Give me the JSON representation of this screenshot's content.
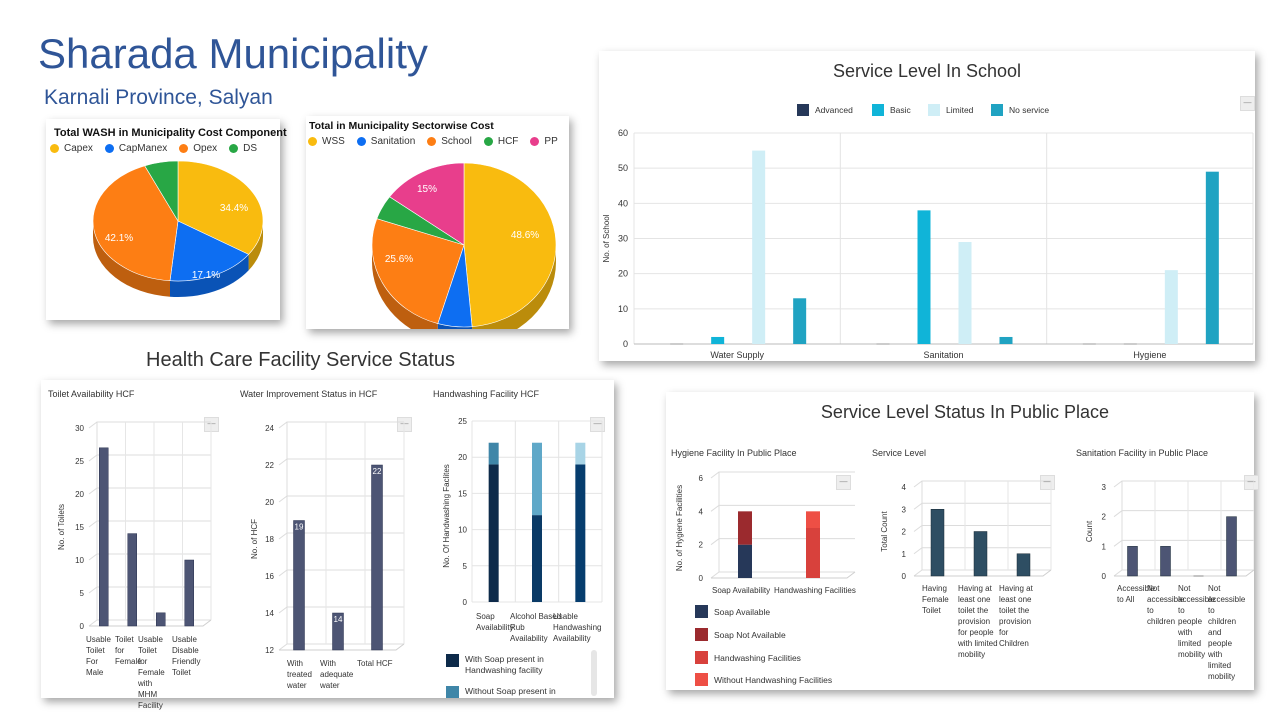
{
  "header": {
    "title": "Sharada Municipality",
    "subtitle": "Karnali Province, Salyan"
  },
  "section_titles": {
    "hcf": "Health Care Facility Service Status",
    "public": "Service Level Status In Public Place"
  },
  "menu_icon": "—",
  "colors": {
    "title": "#2f5597",
    "navy": "#4d5574",
    "hcf_bar": "#50597a"
  },
  "chart_data": [
    {
      "id": "wash_cost",
      "type": "pie",
      "title": "Total WASH in Municipality Cost Component",
      "legend": [
        "Capex",
        "CapManex",
        "Opex",
        "DS"
      ],
      "values": [
        34.4,
        17.1,
        42.1,
        6.4
      ],
      "labels": [
        "34.4%",
        "17.1%",
        "42.1%",
        ""
      ],
      "colors": [
        "#f9bb0f",
        "#0d6ef2",
        "#fd7e14",
        "#28a745"
      ]
    },
    {
      "id": "sectorwise_cost",
      "type": "pie",
      "title": "Total in Municipality Sectorwise Cost",
      "legend": [
        "WSS",
        "Sanitation",
        "School",
        "HCF",
        "PP"
      ],
      "values": [
        48.6,
        6.0,
        25.6,
        4.8,
        15.0
      ],
      "labels": [
        "48.6%",
        "",
        "25.6%",
        "",
        "15%"
      ],
      "colors": [
        "#f9bb0f",
        "#0d6ef2",
        "#fd7e14",
        "#28a745",
        "#e83e8c"
      ]
    },
    {
      "id": "school",
      "type": "bar",
      "title": "Service Level In School",
      "categories": [
        "Water Supply",
        "Sanitation",
        "Hygiene"
      ],
      "series": [
        {
          "name": "Advanced",
          "color": "#263859",
          "values": [
            0,
            0,
            0
          ]
        },
        {
          "name": "Basic",
          "color": "#10b4d8",
          "values": [
            2,
            38,
            0
          ]
        },
        {
          "name": "Limited",
          "color": "#cfeef6",
          "values": [
            55,
            29,
            21
          ]
        },
        {
          "name": "No service",
          "color": "#20a3c2",
          "values": [
            13,
            2,
            49
          ]
        }
      ],
      "ylabel": "No. of School",
      "ylim": [
        0,
        60
      ],
      "yticks": [
        "0",
        "10",
        "20",
        "30",
        "40",
        "50",
        "60"
      ],
      "legend_position": "top"
    },
    {
      "id": "toilet_hcf",
      "type": "bar",
      "title": "Toilet Availability HCF",
      "categories": [
        "Usable Toilet For Male",
        "Toilet for Female",
        "Usable Toilet for Female with MHM Facility",
        "Usable Disable Friendly Toilet"
      ],
      "values": [
        27,
        14,
        2,
        10
      ],
      "ylabel": "No. of Toilets",
      "ylim": [
        0,
        30
      ],
      "yticks": [
        "0",
        "5",
        "10",
        "15",
        "20",
        "25",
        "30"
      ]
    },
    {
      "id": "water_hcf",
      "type": "bar",
      "title": "Water Improvement Status in HCF",
      "categories": [
        "With treated water",
        "With adequate water",
        "Total HCF"
      ],
      "values": [
        19,
        14,
        22
      ],
      "data_labels": [
        "19",
        "14",
        "22"
      ],
      "ylabel": "No. of HCF",
      "ylim": [
        12,
        24
      ],
      "yticks": [
        "12",
        "14",
        "16",
        "18",
        "20",
        "22",
        "24"
      ]
    },
    {
      "id": "handwash_hcf",
      "type": "bar",
      "title": "Handwashing Facility HCF",
      "categories": [
        "Soap Availability",
        "Alcohol Based Rub Availability",
        "Usable Handwashing Availability"
      ],
      "series": [
        {
          "name": "With Soap present in Handwashing facility",
          "values": [
            19,
            12,
            19
          ]
        },
        {
          "name": "Without Soap present in",
          "values": [
            3,
            10,
            3
          ]
        }
      ],
      "segment_colors": [
        [
          "#0d2a4a",
          "#3f86a8"
        ],
        [
          "#0a3a66",
          "#5fa8c8"
        ],
        [
          "#063d6e",
          "#a8d4e6"
        ]
      ],
      "ylabel": "No. Of Handwashing Faclites",
      "ylim": [
        0,
        25
      ],
      "yticks": [
        "0",
        "5",
        "10",
        "15",
        "20",
        "25"
      ]
    },
    {
      "id": "hygiene_pp",
      "type": "bar",
      "title": "Hygiene Facility In Public Place",
      "categories": [
        "Soap Availability",
        "Handwashing Facilities"
      ],
      "series": [
        {
          "name": "Soap Available",
          "color": "#263859",
          "values": [
            2,
            0
          ]
        },
        {
          "name": "Soap Not Available",
          "color": "#9b2a2e",
          "values": [
            2,
            0
          ]
        },
        {
          "name": "Handwashing Facilities",
          "color": "#d8413c",
          "values": [
            0,
            3
          ]
        },
        {
          "name": "Without Handwashing Facilities",
          "color": "#ee4f45",
          "values": [
            0,
            1
          ]
        }
      ],
      "ylabel": "No. of Hygiene Facilities",
      "ylim": [
        0,
        6
      ],
      "yticks": [
        "0",
        "2",
        "4",
        "6"
      ]
    },
    {
      "id": "service_level_pp",
      "type": "bar",
      "title": "Service Level",
      "categories": [
        "Having Female Toilet",
        "Having at least one toilet the provision for people with limited mobility",
        "Having at least one toilet the provision for Children"
      ],
      "values": [
        3,
        2,
        1
      ],
      "ylabel": "Total Count",
      "ylim": [
        0,
        4
      ],
      "yticks": [
        "0",
        "1",
        "2",
        "3",
        "4"
      ]
    },
    {
      "id": "sanitation_pp",
      "type": "bar",
      "title": "Sanitation Facility in Public Place",
      "categories": [
        "Accessible to All",
        "Not accessible to children",
        "Not accessible to people with limited mobility",
        "Not accessible to children and people with limited mobility"
      ],
      "values": [
        1,
        1,
        0,
        2
      ],
      "ylabel": "Count",
      "ylim": [
        0,
        3
      ],
      "yticks": [
        "0",
        "1",
        "2",
        "3"
      ]
    }
  ]
}
